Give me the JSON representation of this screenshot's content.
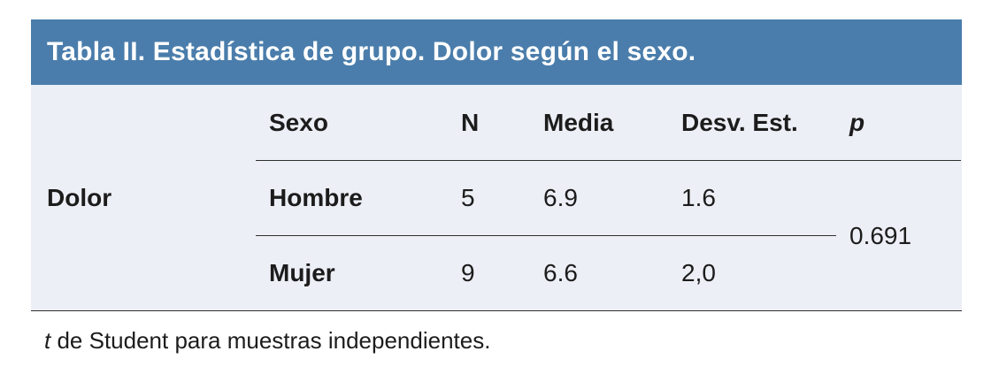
{
  "table": {
    "title": "Tabla II. Estadística de grupo. Dolor según el sexo.",
    "group_label": "Dolor",
    "columns": [
      "Sexo",
      "N",
      "Media",
      "Desv. Est.",
      "p"
    ],
    "rows": [
      [
        "Hombre",
        "5",
        "6.9",
        "1.6"
      ],
      [
        "Mujer",
        "9",
        "6.6",
        "2,0"
      ]
    ],
    "p_value": "0.691",
    "footnote": {
      "italic": "t",
      "rest": " de Student para muestras independientes."
    }
  },
  "colors": {
    "header_bg": "#4a7dab",
    "body_bg": "#edeff6",
    "line": "#2e2e2e",
    "text": "#1c1c1c",
    "title_text": "#ffffff"
  },
  "chart_data": {
    "type": "table",
    "title": "Tabla II. Estadística de grupo. Dolor según el sexo.",
    "row_group": "Dolor",
    "columns": [
      "Sexo",
      "N",
      "Media",
      "Desv. Est.",
      "p"
    ],
    "rows": [
      {
        "Sexo": "Hombre",
        "N": 5,
        "Media": 6.9,
        "Desv. Est.": 1.6,
        "p": 0.691
      },
      {
        "Sexo": "Mujer",
        "N": 9,
        "Media": 6.6,
        "Desv. Est.": "2,0",
        "p": 0.691
      }
    ],
    "footnote": "t de Student para muestras independientes."
  }
}
